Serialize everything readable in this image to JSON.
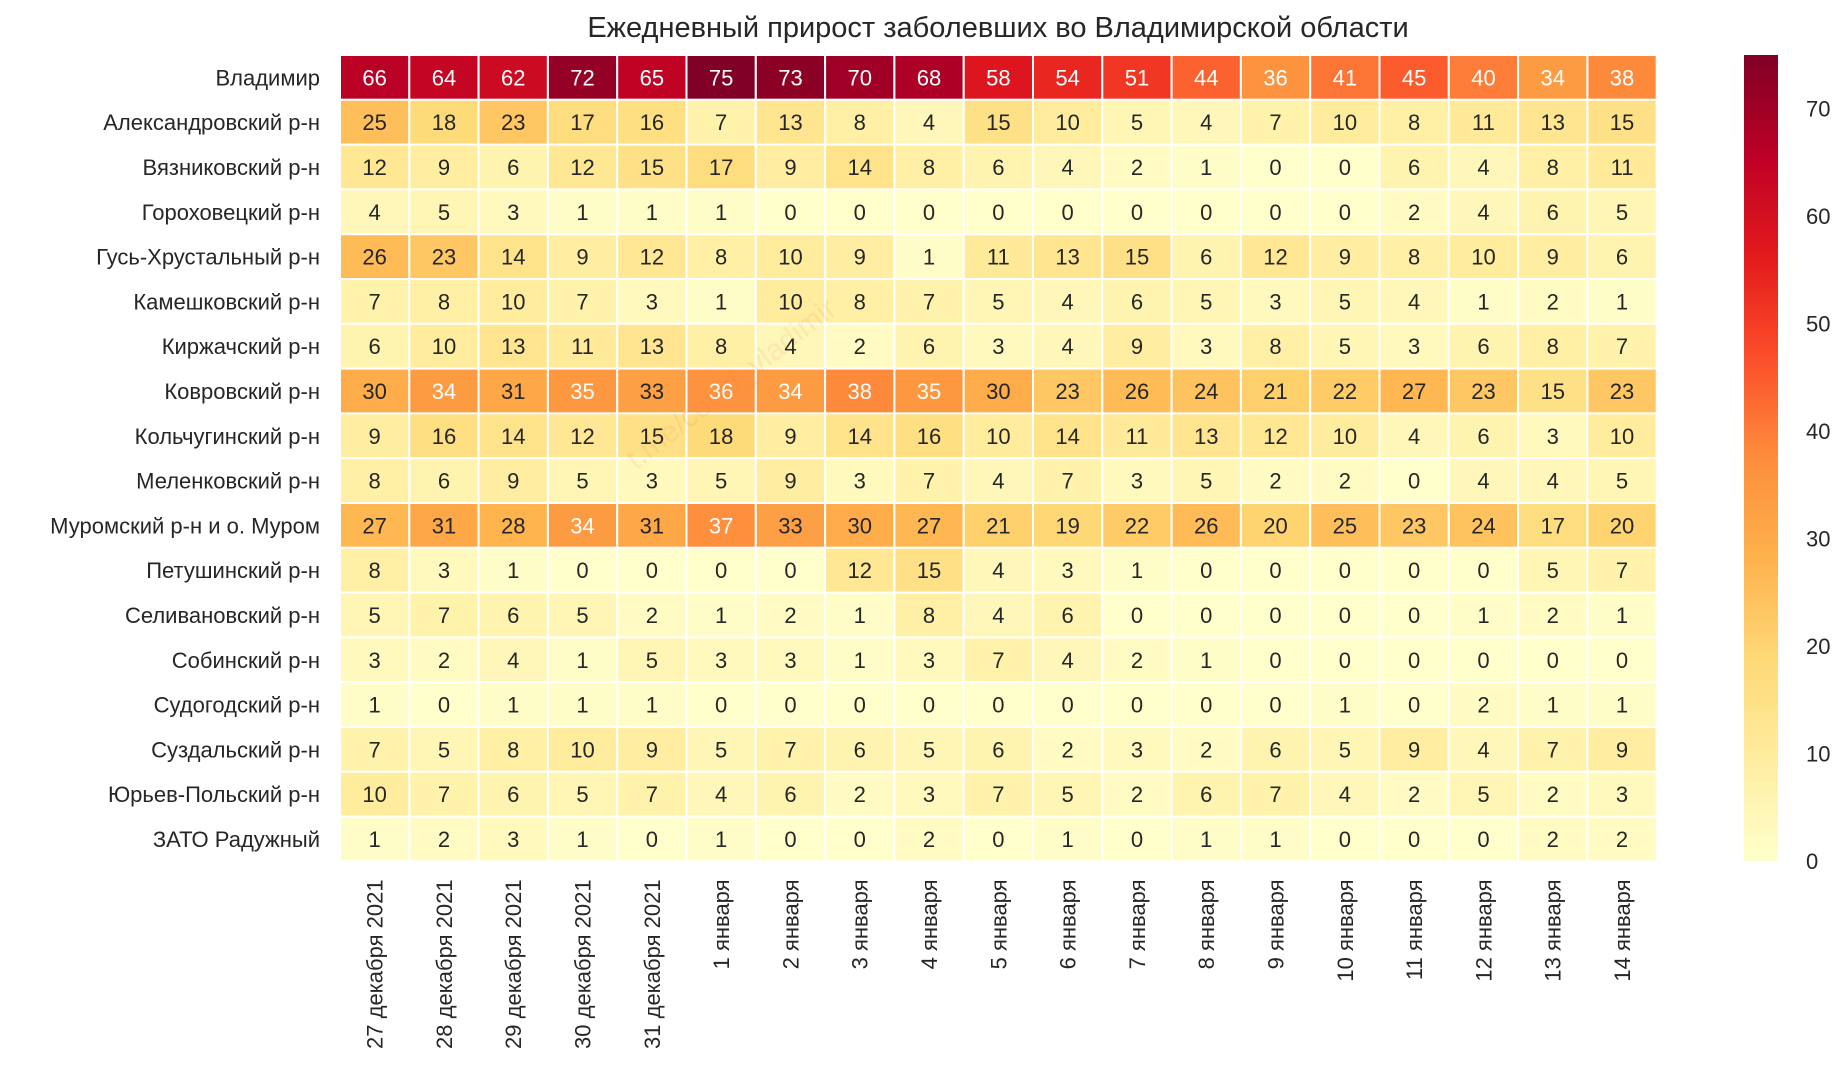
{
  "chart_data": {
    "type": "heatmap",
    "title": "Ежедневный прирост заболевших во Владимирской области",
    "x_labels": [
      "27 декабря 2021",
      "28 декабря 2021",
      "29 декабря 2021",
      "30 декабря 2021",
      "31 декабря 2021",
      "1 января",
      "2 января",
      "3 января",
      "4 января",
      "5 января",
      "6 января",
      "7 января",
      "8 января",
      "9 января",
      "10 января",
      "11 января",
      "12 января",
      "13 января",
      "14 января"
    ],
    "y_labels": [
      "Владимир",
      "Александровский р-н",
      "Вязниковский р-н",
      "Гороховецкий р-н",
      "Гусь-Хрустальный р-н",
      "Камешковский р-н",
      "Киржачский р-н",
      "Ковровский р-н",
      "Кольчугинский р-н",
      "Меленковский р-н",
      "Муромский р-н и о. Муром",
      "Петушинский р-н",
      "Селивановский р-н",
      "Собинский р-н",
      "Судогодский р-н",
      "Суздальский р-н",
      "Юрьев-Польский р-н",
      "ЗАТО Радужный"
    ],
    "values": [
      [
        66,
        64,
        62,
        72,
        65,
        75,
        73,
        70,
        68,
        58,
        54,
        51,
        44,
        36,
        41,
        45,
        40,
        34,
        38
      ],
      [
        25,
        18,
        23,
        17,
        16,
        7,
        13,
        8,
        4,
        15,
        10,
        5,
        4,
        7,
        10,
        8,
        11,
        13,
        15
      ],
      [
        12,
        9,
        6,
        12,
        15,
        17,
        9,
        14,
        8,
        6,
        4,
        2,
        1,
        0,
        0,
        6,
        4,
        8,
        11
      ],
      [
        4,
        5,
        3,
        1,
        1,
        1,
        0,
        0,
        0,
        0,
        0,
        0,
        0,
        0,
        0,
        2,
        4,
        6,
        5
      ],
      [
        26,
        23,
        14,
        9,
        12,
        8,
        10,
        9,
        1,
        11,
        13,
        15,
        6,
        12,
        9,
        8,
        10,
        9,
        6
      ],
      [
        7,
        8,
        10,
        7,
        3,
        1,
        10,
        8,
        7,
        5,
        4,
        6,
        5,
        3,
        5,
        4,
        1,
        2,
        1
      ],
      [
        6,
        10,
        13,
        11,
        13,
        8,
        4,
        2,
        6,
        3,
        4,
        9,
        3,
        8,
        5,
        3,
        6,
        8,
        7
      ],
      [
        30,
        34,
        31,
        35,
        33,
        36,
        34,
        38,
        35,
        30,
        23,
        26,
        24,
        21,
        22,
        27,
        23,
        15,
        23
      ],
      [
        9,
        16,
        14,
        12,
        15,
        18,
        9,
        14,
        16,
        10,
        14,
        11,
        13,
        12,
        10,
        4,
        6,
        3,
        10
      ],
      [
        8,
        6,
        9,
        5,
        3,
        5,
        9,
        3,
        7,
        4,
        7,
        3,
        5,
        2,
        2,
        0,
        4,
        4,
        5
      ],
      [
        27,
        31,
        28,
        34,
        31,
        37,
        33,
        30,
        27,
        21,
        19,
        22,
        26,
        20,
        25,
        23,
        24,
        17,
        20
      ],
      [
        8,
        3,
        1,
        0,
        0,
        0,
        0,
        12,
        15,
        4,
        3,
        1,
        0,
        0,
        0,
        0,
        0,
        5,
        7
      ],
      [
        5,
        7,
        6,
        5,
        2,
        1,
        2,
        1,
        8,
        4,
        6,
        0,
        0,
        0,
        0,
        0,
        1,
        2,
        1
      ],
      [
        3,
        2,
        4,
        1,
        5,
        3,
        3,
        1,
        3,
        7,
        4,
        2,
        1,
        0,
        0,
        0,
        0,
        0,
        0
      ],
      [
        1,
        0,
        1,
        1,
        1,
        0,
        0,
        0,
        0,
        0,
        0,
        0,
        0,
        0,
        1,
        0,
        2,
        1,
        1
      ],
      [
        7,
        5,
        8,
        10,
        9,
        5,
        7,
        6,
        5,
        6,
        2,
        3,
        2,
        6,
        5,
        9,
        4,
        7,
        9
      ],
      [
        10,
        7,
        6,
        5,
        7,
        4,
        6,
        2,
        3,
        7,
        5,
        2,
        6,
        7,
        4,
        2,
        5,
        2,
        3
      ],
      [
        1,
        2,
        3,
        1,
        0,
        1,
        0,
        0,
        2,
        0,
        1,
        0,
        1,
        1,
        0,
        0,
        0,
        2,
        2
      ]
    ],
    "vmin": 0,
    "vmax": 75,
    "colormap": "YlOrRd",
    "colorbar_ticks": [
      0,
      10,
      20,
      30,
      40,
      50,
      60,
      70
    ],
    "watermark": "t.me/covid_vladimir"
  }
}
